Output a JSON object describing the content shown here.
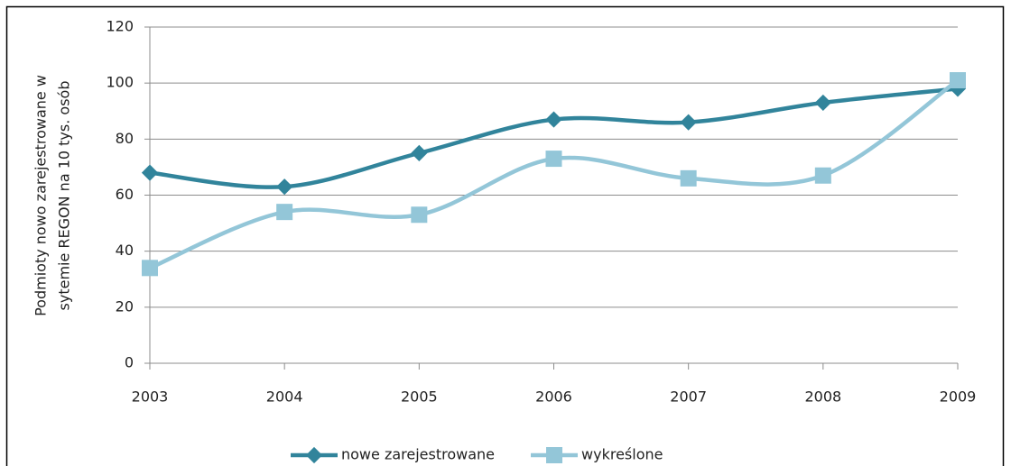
{
  "chart_data": {
    "type": "line",
    "ylabel": [
      "Podmioty nowo zarejestrowane w",
      "sytemie REGON na 10 tys. osób"
    ],
    "x": [
      2003,
      2004,
      2005,
      2006,
      2007,
      2008,
      2009
    ],
    "series": [
      {
        "name": "nowe zarejestrowane",
        "color": "#31849b",
        "marker": "diamond",
        "values": [
          68,
          63,
          75,
          87,
          86,
          93,
          98
        ]
      },
      {
        "name": "wykreślone",
        "color": "#93c6d8",
        "marker": "square",
        "values": [
          34,
          54,
          53,
          73,
          66,
          67,
          101
        ]
      }
    ],
    "xlim": [
      2003,
      2009
    ],
    "xticks": [
      2003,
      2004,
      2005,
      2006,
      2007,
      2008,
      2009
    ],
    "ylim": [
      0,
      120
    ],
    "yticks": [
      0,
      20,
      40,
      60,
      80,
      100,
      120
    ],
    "grid": true,
    "smooth": true,
    "legend": "bottom"
  }
}
